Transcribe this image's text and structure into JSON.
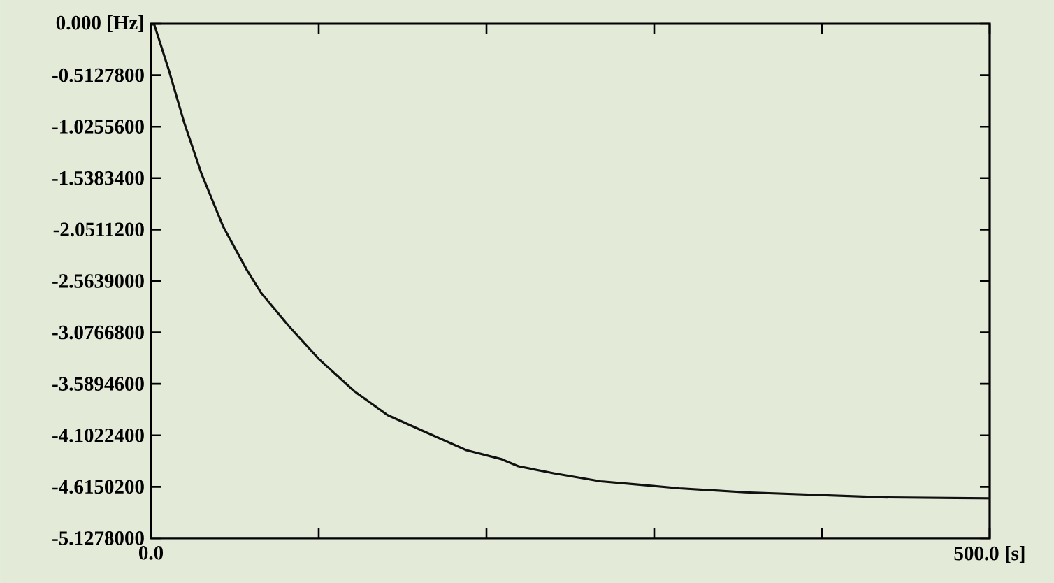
{
  "chart_data": {
    "type": "line",
    "x": [
      0,
      2,
      10.6,
      19.7,
      30,
      43,
      57,
      66,
      82,
      100,
      121,
      141,
      165,
      188,
      209,
      219,
      240,
      268,
      289,
      315,
      354,
      436,
      500
    ],
    "values": [
      0,
      -0.01,
      -0.46,
      -0.98,
      -1.49,
      -2.02,
      -2.45,
      -2.69,
      -3.01,
      -3.34,
      -3.66,
      -3.9,
      -4.08,
      -4.25,
      -4.34,
      -4.41,
      -4.48,
      -4.56,
      -4.59,
      -4.63,
      -4.67,
      -4.72,
      -4.73
    ],
    "color": "#111111",
    "xlim": [
      0,
      500
    ],
    "xticks": [
      {
        "value": 0,
        "label": "0.0"
      },
      {
        "value": 100,
        "label": null
      },
      {
        "value": 200,
        "label": null
      },
      {
        "value": 300,
        "label": null
      },
      {
        "value": 400,
        "label": null
      },
      {
        "value": 500,
        "label": "500.0 [s]"
      }
    ],
    "ylim": [
      -5.1278,
      0
    ],
    "yticks": [
      {
        "value": 0,
        "label": "0.000 [Hz]"
      },
      {
        "value": -0.51278,
        "label": "-0.5127800"
      },
      {
        "value": -1.02556,
        "label": "-1.0255600"
      },
      {
        "value": -1.53834,
        "label": "-1.5383400"
      },
      {
        "value": -2.05112,
        "label": "-2.0511200"
      },
      {
        "value": -2.5639,
        "label": "-2.5639000"
      },
      {
        "value": -3.07668,
        "label": "-3.0766800"
      },
      {
        "value": -3.58946,
        "label": "-3.5894600"
      },
      {
        "value": -4.10224,
        "label": "-4.1022400"
      },
      {
        "value": -4.61502,
        "label": "-4.6150200"
      },
      {
        "value": -5.1278,
        "label": "-5.1278000"
      }
    ]
  }
}
